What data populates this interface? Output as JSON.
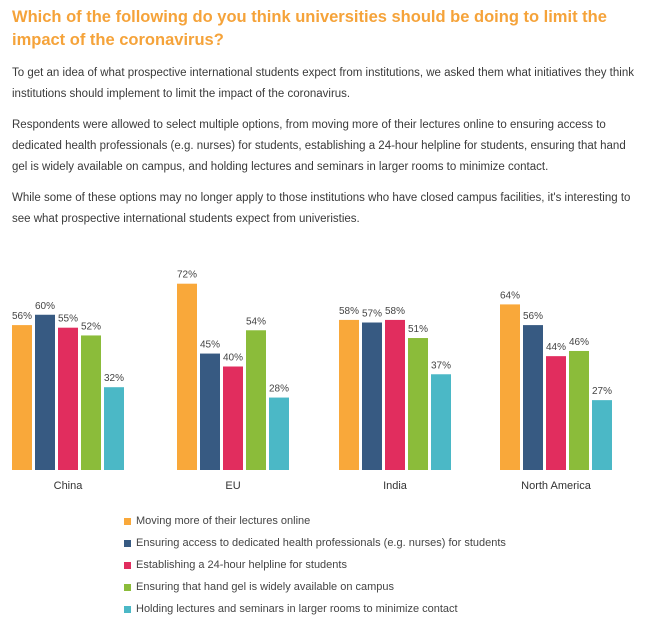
{
  "header": {
    "title": "Which of the following do you think universities should be doing to limit the impact of the coronavirus?"
  },
  "intro": {
    "paragraphs": [
      "To get an idea of what prospective international students expect from institutions, we asked them what initiatives they think institutions should implement to limit the impact of the coronavirus.",
      "Respondents were allowed to select multiple options, from moving more of their lectures online to ensuring access to dedicated health professionals (e.g. nurses) for students, establishing a 24-hour helpline for students, ensuring that hand gel is widely available on campus, and holding lectures and seminars in larger rooms to minimize contact.",
      "While some of these options may no longer apply to those institutions who have closed campus facilities, it's interesting to see what prospective international students expect from univeristies."
    ]
  },
  "colors": {
    "title": "#f5a33a",
    "series": [
      "#f9a83a",
      "#375a82",
      "#e12d5e",
      "#8bbc3a",
      "#4bb8c6"
    ]
  },
  "chart_data": {
    "type": "bar",
    "title": "",
    "xlabel": "",
    "ylabel": "",
    "ylim": [
      0,
      80
    ],
    "grid": false,
    "value_suffix": "%",
    "categories": [
      "China",
      "EU",
      "India",
      "North America"
    ],
    "series": [
      {
        "name": "Moving more of their lectures online",
        "values": [
          56,
          72,
          58,
          64
        ]
      },
      {
        "name": "Ensuring access to dedicated health professionals (e.g. nurses) for students",
        "values": [
          60,
          45,
          57,
          56
        ]
      },
      {
        "name": "Establishing a 24-hour helpline for students",
        "values": [
          55,
          40,
          58,
          44
        ]
      },
      {
        "name": "Ensuring that hand gel is widely available on campus",
        "values": [
          52,
          54,
          51,
          46
        ]
      },
      {
        "name": "Holding lectures and seminars in larger rooms to minimize contact",
        "values": [
          32,
          28,
          37,
          27
        ]
      }
    ],
    "legend_position": "bottom"
  }
}
